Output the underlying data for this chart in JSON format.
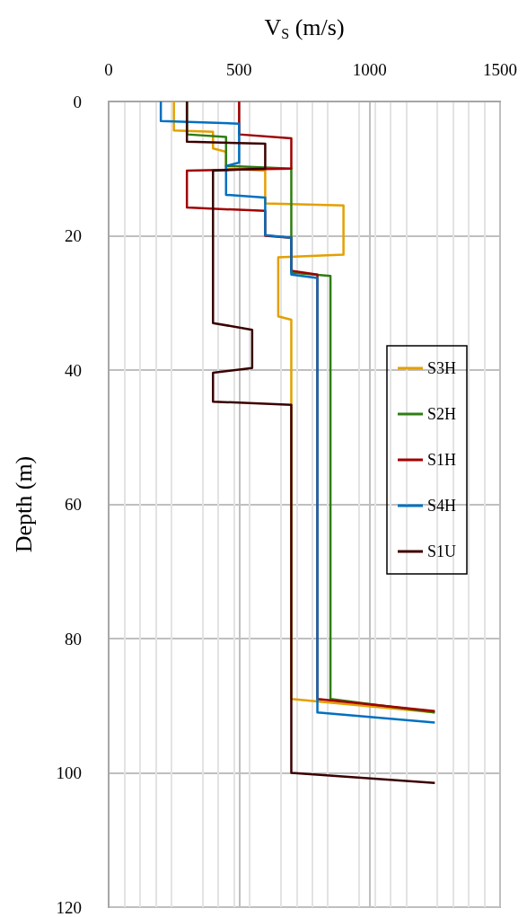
{
  "chart_data": {
    "type": "line",
    "xlabel": "V$_{S}$ (m/s)",
    "ylabel": "Depth (m)",
    "xlim": [
      0,
      1500
    ],
    "xticks": [
      0,
      500,
      1000,
      1500
    ],
    "ylim": [
      120,
      0
    ],
    "yticks": [
      0,
      20,
      40,
      60,
      80,
      100,
      120
    ],
    "grid": true,
    "legend": "right",
    "marker": "none",
    "line_style": "solid",
    "series": [
      {
        "name": "S3H",
        "color": "#e3a000",
        "x": [
          250,
          250,
          400,
          400,
          450,
          450,
          600,
          600,
          900,
          900,
          650,
          650,
          700,
          700,
          1250
        ],
        "values": [
          0,
          4.3,
          4.5,
          7,
          7.5,
          10,
          10.3,
          15.2,
          15.5,
          22.8,
          23.2,
          32,
          32.5,
          89,
          91
        ]
      },
      {
        "name": "S2H",
        "color": "#2e7d12",
        "x": [
          300,
          300,
          450,
          450,
          700,
          700,
          850,
          850,
          1250
        ],
        "values": [
          0,
          4.9,
          5.3,
          9.6,
          10,
          25.5,
          26,
          89,
          91
        ]
      },
      {
        "name": "S1H",
        "color": "#a00000",
        "x": [
          500,
          500,
          700,
          700,
          300,
          300,
          600,
          600,
          700,
          700,
          800,
          800,
          1250
        ],
        "values": [
          0,
          4.9,
          5.5,
          10,
          10.3,
          15.8,
          16.3,
          20,
          20.3,
          25.2,
          25.8,
          89,
          90.8
        ]
      },
      {
        "name": "S4H",
        "color": "#0070c0",
        "x": [
          200,
          200,
          500,
          500,
          450,
          450,
          600,
          600,
          700,
          700,
          800,
          800,
          1250
        ],
        "values": [
          0,
          2.9,
          3.3,
          9.1,
          9.6,
          13.9,
          14.3,
          19.9,
          20.3,
          25.8,
          26.3,
          91,
          92.5
        ]
      },
      {
        "name": "S1U",
        "color": "#3a0000",
        "x": [
          300,
          300,
          600,
          600,
          400,
          400,
          550,
          550,
          400,
          400,
          700,
          700,
          1250
        ],
        "values": [
          0,
          6,
          6.3,
          10,
          10.3,
          33,
          34,
          39.7,
          40.4,
          44.7,
          45.2,
          100,
          101.5
        ]
      }
    ]
  }
}
